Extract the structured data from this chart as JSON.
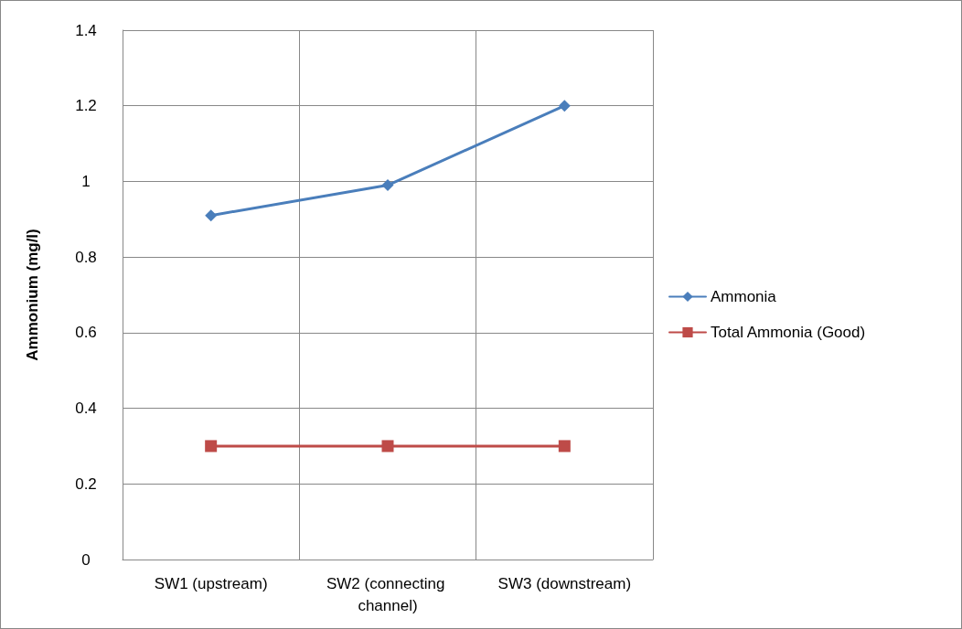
{
  "chart_data": {
    "type": "line",
    "ylabel": "Ammonium (mg/l)",
    "categories": [
      "SW1 (upstream)",
      "SW2 (connecting channel)",
      "SW3 (downstream)"
    ],
    "series": [
      {
        "name": "Ammonia",
        "color": "#4a7ebb",
        "marker": "diamond",
        "values": [
          0.91,
          0.99,
          1.2
        ]
      },
      {
        "name": "Total Ammonia (Good)",
        "color": "#be4b48",
        "marker": "square",
        "values": [
          0.3,
          0.3,
          0.3
        ]
      }
    ],
    "ylim": [
      0,
      1.4
    ],
    "yticks": [
      0,
      0.2,
      0.4,
      0.6,
      0.8,
      1,
      1.2,
      1.4
    ],
    "grid": true,
    "legend": "right",
    "line_style": "solid"
  }
}
